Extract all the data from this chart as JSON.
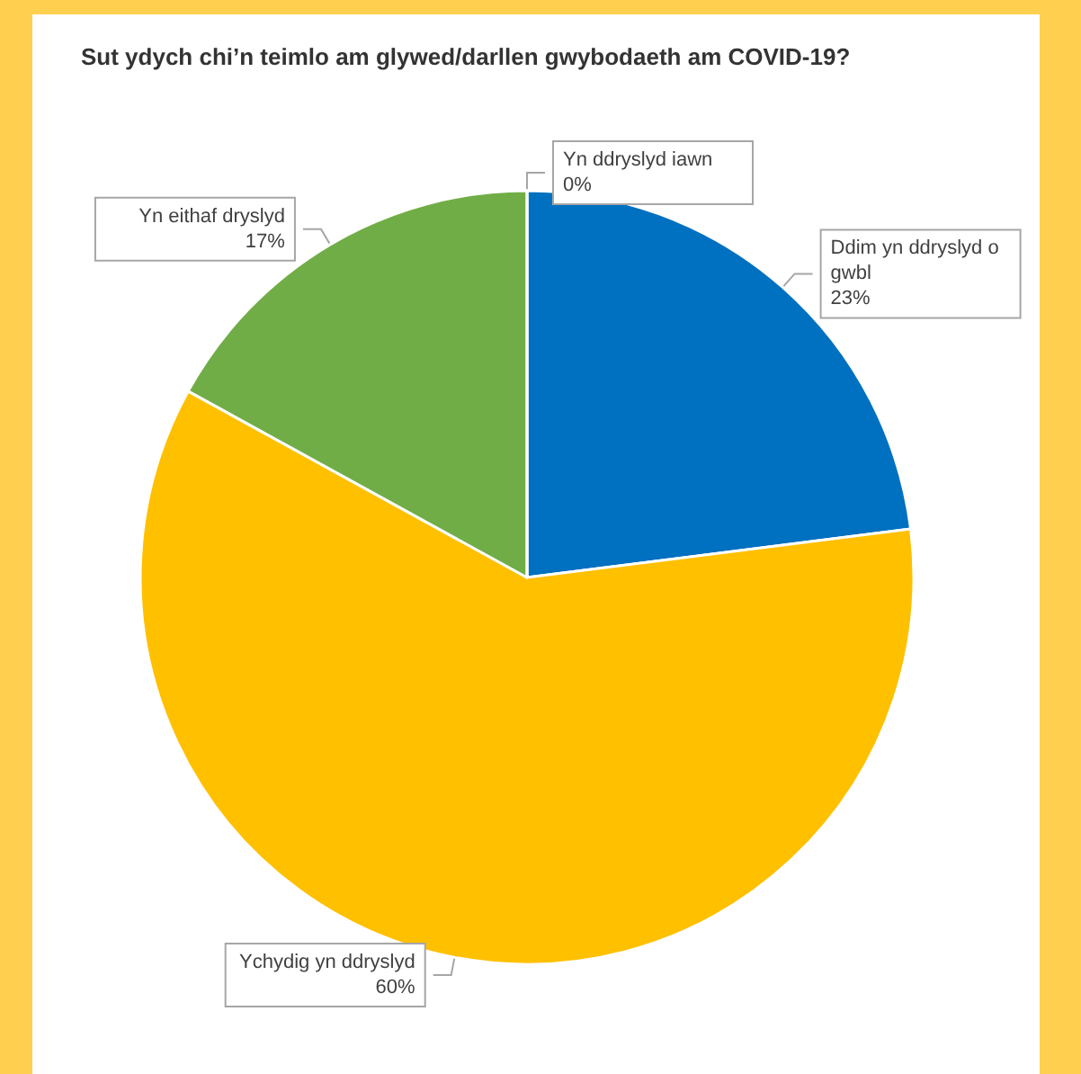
{
  "chart_data": {
    "type": "pie",
    "title": "Sut ydych chi’n teimlo am glywed/darllen gwybodaeth am COVID-19?",
    "categories": [
      "Ddim yn ddryslyd o gwbl",
      "Ychydig yn ddryslyd",
      "Yn eithaf dryslyd",
      "Yn ddryslyd iawn"
    ],
    "values": [
      23,
      60,
      17,
      0
    ],
    "colors": [
      "#0070c0",
      "#ffc000",
      "#70ad47",
      "#a5a5a5"
    ],
    "value_labels": [
      "23%",
      "60%",
      "17%",
      "0%"
    ]
  }
}
